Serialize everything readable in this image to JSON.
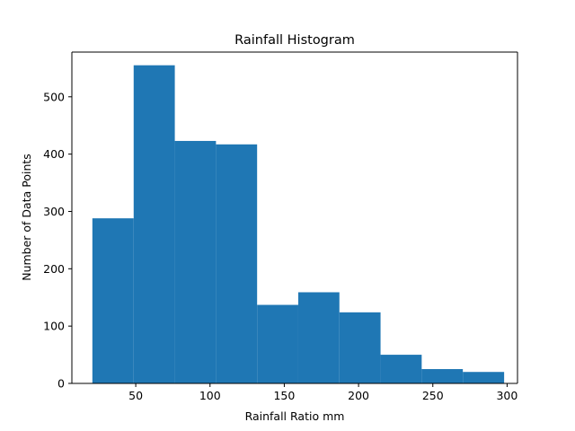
{
  "chart_data": {
    "type": "bar",
    "title": "Rainfall Histogram",
    "xlabel": "Rainfall Ratio mm",
    "ylabel": "Number of Data Points",
    "xlim": [
      7,
      307
    ],
    "ylim": [
      0,
      578
    ],
    "bins": [
      20.8,
      48.6,
      76.3,
      104.0,
      131.7,
      159.4,
      187.1,
      214.8,
      242.5,
      270.2,
      298.0
    ],
    "counts": [
      288,
      555,
      423,
      417,
      137,
      159,
      124,
      50,
      25,
      20
    ],
    "xticks": [
      50,
      100,
      150,
      200,
      250,
      300
    ],
    "yticks": [
      0,
      100,
      200,
      300,
      400,
      500
    ],
    "bar_color": "#1f77b4",
    "grid": false,
    "legend": "none"
  }
}
